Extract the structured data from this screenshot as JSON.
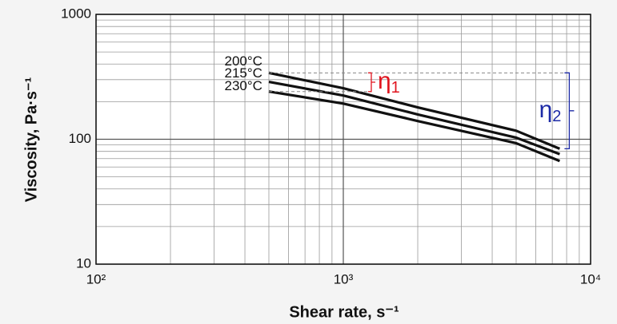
{
  "chart_data": {
    "type": "line",
    "xlabel": "Shear rate, s⁻¹",
    "ylabel": "Viscosity, Pa·s⁻¹",
    "x": [
      500,
      1000,
      2000,
      5000,
      7500
    ],
    "series": [
      {
        "name": "200°C",
        "color": "#111111",
        "values": [
          340,
          256,
          180,
          117,
          84
        ]
      },
      {
        "name": "215°C",
        "color": "#111111",
        "values": [
          288,
          224,
          158,
          103,
          76
        ]
      },
      {
        "name": "230°C",
        "color": "#111111",
        "values": [
          241,
          193,
          140,
          93,
          67
        ]
      }
    ],
    "xlim": [
      100,
      10000
    ],
    "ylim": [
      10,
      1000
    ],
    "xticks": [
      {
        "value": 100,
        "label": "10²"
      },
      {
        "value": 1000,
        "label": "10³"
      },
      {
        "value": 10000,
        "label": "10⁴"
      }
    ],
    "yticks": [
      10,
      100,
      1000
    ],
    "log_x": true,
    "log_y": true,
    "grid": true,
    "annotations": [
      {
        "text": "η",
        "sub": "1",
        "color": "#e0141e"
      },
      {
        "text": "η",
        "sub": "2",
        "color": "#1c2aa6"
      }
    ]
  }
}
